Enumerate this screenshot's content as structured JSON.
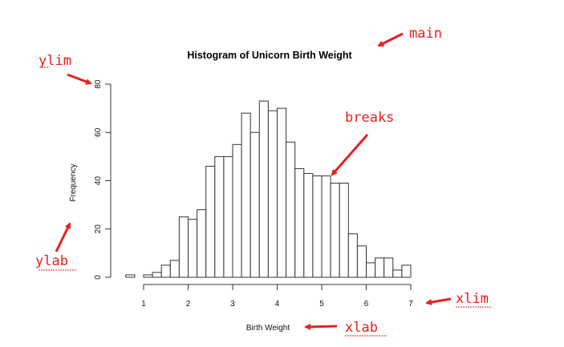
{
  "colors": {
    "annotation": "#e82020",
    "bar_fill": "#ffffff",
    "bar_stroke": "#333333"
  },
  "annotations": {
    "main": "main",
    "ylim": "ylim",
    "breaks": "breaks",
    "ylab": "ylab",
    "xlim": "xlim",
    "xlab": "xlab"
  },
  "chart_data": {
    "type": "bar",
    "title": "Histogram of Unicorn Birth Weight",
    "xlabel": "Birth Weight",
    "ylabel": "Frequency",
    "xlim": [
      0.5,
      7
    ],
    "ylim": [
      0,
      80
    ],
    "xticks": [
      1,
      2,
      3,
      4,
      5,
      6,
      7
    ],
    "yticks": [
      0,
      20,
      40,
      60,
      80
    ],
    "bin_width": 0.2,
    "bin_edges": [
      0.6,
      0.8,
      1.0,
      1.2,
      1.4,
      1.6,
      1.8,
      2.0,
      2.2,
      2.4,
      2.6,
      2.8,
      3.0,
      3.2,
      3.4,
      3.6,
      3.8,
      4.0,
      4.2,
      4.4,
      4.6,
      4.8,
      5.0,
      5.2,
      5.4,
      5.6,
      5.8,
      6.0,
      6.2,
      6.4,
      6.6,
      6.8,
      7.0
    ],
    "values": [
      1,
      0,
      1,
      2,
      5,
      7,
      25,
      24,
      28,
      46,
      50,
      50,
      55,
      68,
      60,
      73,
      69,
      70,
      56,
      45,
      43,
      42,
      42,
      39,
      39,
      18,
      13,
      6,
      8,
      8,
      3,
      5
    ],
    "grid": false
  }
}
